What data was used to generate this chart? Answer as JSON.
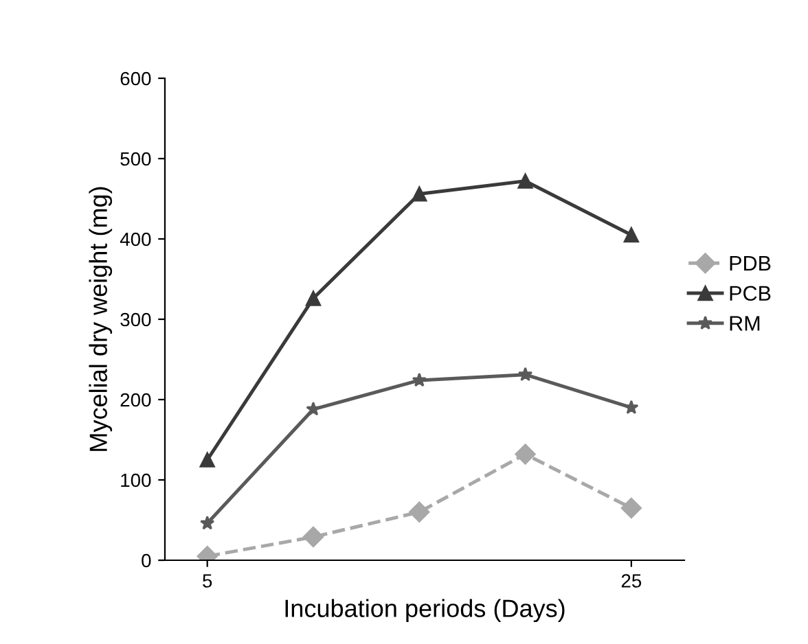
{
  "chart_data": {
    "type": "line",
    "xlabel": "Incubation periods (Days)",
    "ylabel": "Mycelial dry weight (mg)",
    "x": [
      5,
      10,
      15,
      20,
      25
    ],
    "xlim": [
      3,
      27.5
    ],
    "xticks": [
      5,
      25
    ],
    "ylim": [
      0,
      600
    ],
    "yticks": [
      0,
      100,
      200,
      300,
      400,
      500,
      600
    ],
    "grid": false,
    "legend": "right",
    "series": [
      {
        "name": "PDB",
        "color": "#a8a8a8",
        "marker": "diamond",
        "line_style": "dashed",
        "values": [
          5,
          29,
          60,
          132,
          65
        ]
      },
      {
        "name": "PCB",
        "color": "#3a3a3a",
        "marker": "triangle",
        "line_style": "solid",
        "values": [
          125,
          326,
          456,
          472,
          405
        ]
      },
      {
        "name": "RM",
        "color": "#5a5a5a",
        "marker": "star",
        "line_style": "solid",
        "values": [
          46,
          188,
          224,
          231,
          190
        ]
      }
    ]
  }
}
